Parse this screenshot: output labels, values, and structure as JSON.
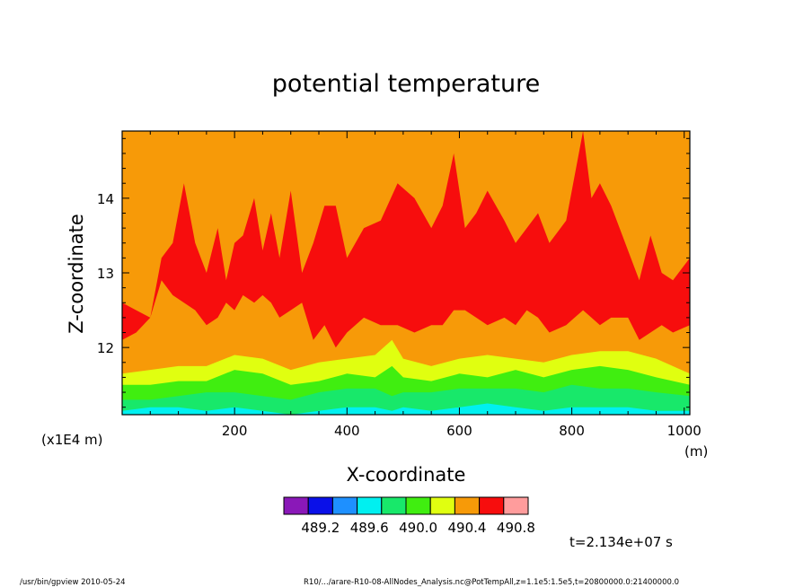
{
  "chart_data": {
    "type": "heatmap",
    "title": "potential temperature",
    "xlabel": "X-coordinate",
    "ylabel": "Z-coordinate",
    "x_unit": "(m)",
    "y_scale_note": "(x1E4 m)",
    "xlim": [
      0,
      1010
    ],
    "ylim": [
      11.1,
      14.9
    ],
    "x_ticks": [
      200,
      400,
      600,
      800,
      1000
    ],
    "y_ticks": [
      12,
      13,
      14
    ],
    "colorbar": {
      "levels": [
        489.2,
        489.6,
        490.0,
        490.4,
        490.8
      ],
      "colors": [
        "#8a18b8",
        "#0a10e8",
        "#1e90ff",
        "#00f0f0",
        "#18e86a",
        "#40ee10",
        "#e0ff10",
        "#f79a08",
        "#f70d0d",
        "#ff9c9c"
      ]
    },
    "bands_description": "orange field (490.4-490.8) with red plumes (490.8-491.2) between z~12 and ~14.9, yellow/green/cyan layers (489.6-490.4) below z~12",
    "red_region_profile": {
      "x": [
        0,
        25,
        50,
        70,
        90,
        110,
        130,
        150,
        170,
        185,
        200,
        215,
        235,
        250,
        265,
        280,
        300,
        320,
        340,
        360,
        380,
        400,
        430,
        460,
        490,
        520,
        550,
        570,
        590,
        610,
        630,
        650,
        680,
        700,
        720,
        740,
        760,
        790,
        820,
        835,
        850,
        870,
        900,
        920,
        940,
        960,
        980,
        1010
      ],
      "z_top": [
        12.6,
        12.5,
        12.4,
        13.2,
        13.4,
        14.2,
        13.4,
        13.0,
        13.6,
        12.9,
        13.4,
        13.5,
        14.0,
        13.3,
        13.8,
        13.2,
        14.1,
        13.0,
        13.4,
        13.9,
        13.9,
        13.2,
        13.6,
        13.7,
        14.2,
        14.0,
        13.6,
        13.9,
        14.6,
        13.6,
        13.8,
        14.1,
        13.7,
        13.4,
        13.6,
        13.8,
        13.4,
        13.7,
        14.9,
        14.0,
        14.2,
        13.9,
        13.3,
        12.9,
        13.5,
        13.0,
        12.9,
        13.2
      ],
      "z_bottom": [
        12.1,
        12.2,
        12.4,
        12.9,
        12.7,
        12.6,
        12.5,
        12.3,
        12.4,
        12.6,
        12.5,
        12.7,
        12.6,
        12.7,
        12.6,
        12.4,
        12.5,
        12.6,
        12.1,
        12.3,
        12.0,
        12.2,
        12.4,
        12.3,
        12.3,
        12.2,
        12.3,
        12.3,
        12.5,
        12.5,
        12.4,
        12.3,
        12.4,
        12.3,
        12.5,
        12.4,
        12.2,
        12.3,
        12.5,
        12.4,
        12.3,
        12.4,
        12.4,
        12.1,
        12.2,
        12.3,
        12.2,
        12.3
      ]
    },
    "layer_tops": {
      "x": [
        0,
        50,
        100,
        150,
        200,
        250,
        300,
        350,
        400,
        450,
        480,
        500,
        550,
        600,
        650,
        700,
        750,
        800,
        850,
        900,
        950,
        1010
      ],
      "yellow_top": [
        11.65,
        11.7,
        11.75,
        11.75,
        11.9,
        11.85,
        11.7,
        11.8,
        11.85,
        11.9,
        12.1,
        11.85,
        11.75,
        11.85,
        11.9,
        11.85,
        11.8,
        11.9,
        11.95,
        11.95,
        11.85,
        11.65
      ],
      "green_top": [
        11.5,
        11.5,
        11.55,
        11.55,
        11.7,
        11.65,
        11.5,
        11.55,
        11.65,
        11.6,
        11.75,
        11.6,
        11.55,
        11.65,
        11.6,
        11.7,
        11.6,
        11.7,
        11.75,
        11.7,
        11.6,
        11.5
      ],
      "light_green_top": [
        11.3,
        11.3,
        11.35,
        11.4,
        11.4,
        11.35,
        11.3,
        11.4,
        11.45,
        11.45,
        11.35,
        11.4,
        11.4,
        11.45,
        11.45,
        11.45,
        11.4,
        11.5,
        11.45,
        11.45,
        11.4,
        11.35
      ],
      "cyan_top": [
        11.15,
        11.2,
        11.2,
        11.15,
        11.2,
        11.15,
        11.1,
        11.15,
        11.2,
        11.2,
        11.15,
        11.2,
        11.15,
        11.2,
        11.25,
        11.2,
        11.15,
        11.2,
        11.2,
        11.2,
        11.15,
        11.15
      ]
    }
  },
  "annotations": {
    "time": "t=2.134e+07 s",
    "footer_left": "/usr/bin/gpview   2010-05-24",
    "footer_right": "R10/.../arare-R10-08-AllNodes_Analysis.nc@PotTempAll,z=1.1e5:1.5e5,t=20800000.0:21400000.0"
  }
}
